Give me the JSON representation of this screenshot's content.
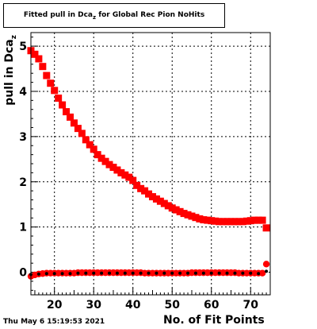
{
  "header": {
    "title_prefix": "Fitted pull in Dca",
    "title_sub": "z",
    "title_suffix": " for Global Rec Pion NoHits"
  },
  "footer": {
    "timestamp": "Thu May  6 15:19:53 2021"
  },
  "chart_data": {
    "type": "scatter",
    "xlabel": "No. of Fit Points",
    "ylabel": "pull in Dca",
    "ylabel_sub": "z",
    "xlim": [
      14,
      75
    ],
    "ylim": [
      -0.5,
      5.3
    ],
    "xticks": [
      20,
      30,
      40,
      50,
      60,
      70
    ],
    "yticks": [
      0,
      1,
      2,
      3,
      4,
      5
    ],
    "grid": true,
    "series": [
      {
        "color": "#ff0000",
        "marker": "square",
        "x": [
          14,
          15,
          16,
          17,
          18,
          19,
          20,
          21,
          22,
          23,
          24,
          25,
          26,
          27,
          28,
          29,
          30,
          31,
          32,
          33,
          34,
          35,
          36,
          37,
          38,
          39,
          40,
          41,
          42,
          43,
          44,
          45,
          46,
          47,
          48,
          49,
          50,
          51,
          52,
          53,
          54,
          55,
          56,
          57,
          58,
          59,
          60,
          61,
          62,
          63,
          64,
          65,
          66,
          67,
          68,
          69,
          70,
          71,
          72,
          73,
          74
        ],
        "values": [
          4.9,
          4.82,
          4.72,
          4.55,
          4.35,
          4.18,
          4.02,
          3.85,
          3.7,
          3.55,
          3.43,
          3.3,
          3.18,
          3.07,
          2.93,
          2.82,
          2.72,
          2.6,
          2.52,
          2.45,
          2.38,
          2.32,
          2.26,
          2.2,
          2.15,
          2.1,
          2.03,
          1.92,
          1.85,
          1.8,
          1.73,
          1.67,
          1.62,
          1.57,
          1.52,
          1.47,
          1.42,
          1.38,
          1.34,
          1.3,
          1.27,
          1.24,
          1.21,
          1.18,
          1.16,
          1.15,
          1.14,
          1.13,
          1.12,
          1.12,
          1.12,
          1.12,
          1.12,
          1.12,
          1.12,
          1.13,
          1.14,
          1.15,
          1.15,
          1.15,
          0.98
        ]
      },
      {
        "color": "#ff0000",
        "marker": "circle",
        "x": [
          14,
          15,
          16,
          17,
          18,
          19,
          20,
          21,
          22,
          23,
          24,
          25,
          26,
          27,
          28,
          29,
          30,
          31,
          32,
          33,
          34,
          35,
          36,
          37,
          38,
          39,
          40,
          41,
          42,
          43,
          44,
          45,
          46,
          47,
          48,
          49,
          50,
          51,
          52,
          53,
          54,
          55,
          56,
          57,
          58,
          59,
          60,
          61,
          62,
          63,
          64,
          65,
          66,
          67,
          68,
          69,
          70,
          71,
          72,
          73,
          74
        ],
        "values": [
          -0.09,
          -0.06,
          -0.04,
          -0.03,
          -0.02,
          -0.02,
          -0.02,
          -0.02,
          -0.02,
          -0.02,
          -0.02,
          -0.02,
          -0.01,
          -0.01,
          -0.01,
          -0.01,
          -0.01,
          -0.01,
          -0.01,
          -0.01,
          -0.01,
          -0.01,
          -0.01,
          -0.01,
          -0.01,
          -0.01,
          -0.01,
          -0.01,
          -0.01,
          -0.02,
          -0.02,
          -0.02,
          -0.02,
          -0.02,
          -0.02,
          -0.02,
          -0.02,
          -0.02,
          -0.02,
          -0.02,
          -0.02,
          -0.01,
          -0.01,
          -0.01,
          -0.01,
          -0.01,
          -0.01,
          -0.01,
          -0.01,
          -0.01,
          -0.01,
          -0.01,
          -0.01,
          -0.02,
          -0.02,
          -0.02,
          -0.02,
          -0.02,
          -0.02,
          -0.02,
          0.18
        ]
      },
      {
        "color": "#000000",
        "marker": "dot",
        "x": [
          14,
          16,
          18,
          20,
          22,
          24,
          26,
          28,
          30,
          32,
          34,
          36,
          38,
          40,
          42,
          44,
          46,
          48,
          50,
          52,
          54,
          56,
          58,
          60,
          62,
          64,
          66,
          68,
          70,
          72,
          74
        ],
        "values": [
          -0.05,
          -0.04,
          -0.03,
          -0.03,
          -0.03,
          -0.03,
          -0.02,
          -0.02,
          -0.02,
          -0.02,
          -0.02,
          -0.02,
          -0.02,
          -0.02,
          -0.02,
          -0.02,
          -0.02,
          -0.02,
          -0.02,
          -0.02,
          -0.02,
          -0.02,
          -0.02,
          -0.02,
          -0.02,
          -0.02,
          -0.02,
          -0.02,
          -0.02,
          -0.03,
          0.02
        ]
      }
    ]
  }
}
